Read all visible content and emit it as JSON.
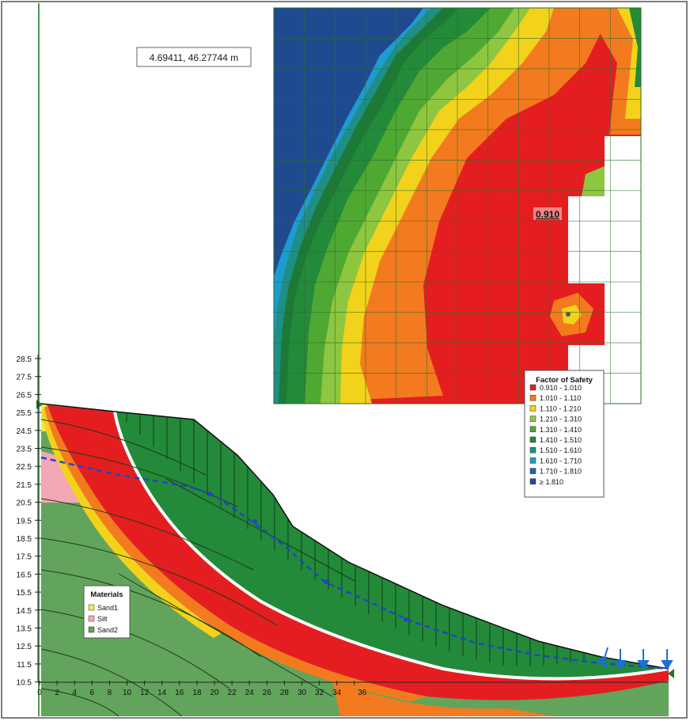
{
  "coordinate_readout": "4.69411, 46.27744 m",
  "min_fos_label": "0.910",
  "legend": {
    "title": "Factor of Safety",
    "entries": [
      {
        "label": "0.910 - 1.010",
        "color": "#e41e20"
      },
      {
        "label": "1.010 - 1.110",
        "color": "#f47a1f"
      },
      {
        "label": "1.110 - 1.210",
        "color": "#f2d21b"
      },
      {
        "label": "1.210 - 1.310",
        "color": "#8fc63f"
      },
      {
        "label": "1.310 - 1.410",
        "color": "#4fa832"
      },
      {
        "label": "1.410 - 1.510",
        "color": "#238a3a"
      },
      {
        "label": "1.510 - 1.610",
        "color": "#1f8f86"
      },
      {
        "label": "1.610 - 1.710",
        "color": "#1e9bd0"
      },
      {
        "label": "1.710 - 1.810",
        "color": "#1f63b0"
      },
      {
        "label": "≥ 1.810",
        "color": "#1f4a8f"
      }
    ]
  },
  "materials": {
    "title": "Materials",
    "items": [
      {
        "label": "Sand1",
        "color": "#f0ee48"
      },
      {
        "label": "Silt",
        "color": "#f3a7b4"
      },
      {
        "label": "Sand2",
        "color": "#63a45c"
      }
    ]
  },
  "y_axis_ticks": [
    "28.5",
    "27.5",
    "26.5",
    "25.5",
    "24.5",
    "23.5",
    "22.5",
    "21.5",
    "20.5",
    "19.5",
    "18.5",
    "17.5",
    "16.5",
    "15.5",
    "14.5",
    "13.5",
    "12.5",
    "11.5",
    "10.5"
  ],
  "x_axis_ticks": [
    "0",
    "2",
    "4",
    "6",
    "8",
    "10",
    "12",
    "14",
    "16",
    "18",
    "20",
    "22",
    "24",
    "26",
    "28",
    "30",
    "32",
    "34",
    "36"
  ]
}
